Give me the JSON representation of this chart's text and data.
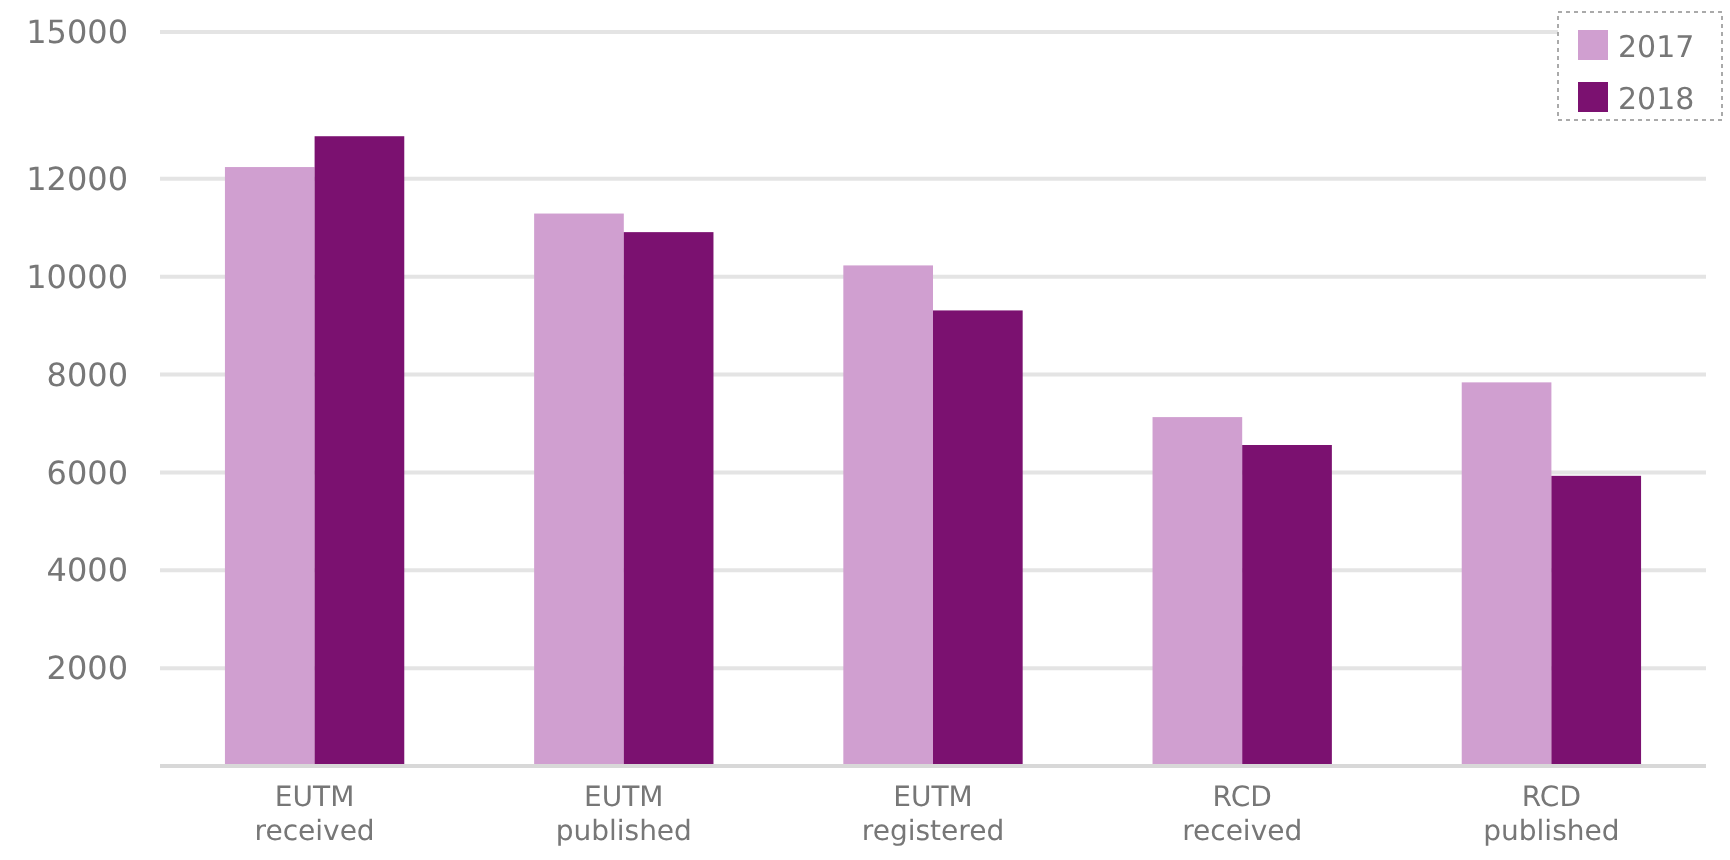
{
  "chart_data": {
    "type": "bar",
    "categories": [
      "EUTM received",
      "EUTM published",
      "EUTM registered",
      "RCD received",
      "RCD published"
    ],
    "series": [
      {
        "name": "2017",
        "color": "#d09fd0",
        "values": [
          12240,
          11290,
          10230,
          7130,
          7840
        ]
      },
      {
        "name": "2018",
        "color": "#7b1170",
        "values": [
          12870,
          10910,
          9310,
          6560,
          5930
        ]
      }
    ],
    "ylim": [
      0,
      15000
    ],
    "yticks": [
      2000,
      4000,
      6000,
      8000,
      10000,
      12000,
      15000
    ],
    "grid": "y",
    "legend": "top right"
  }
}
